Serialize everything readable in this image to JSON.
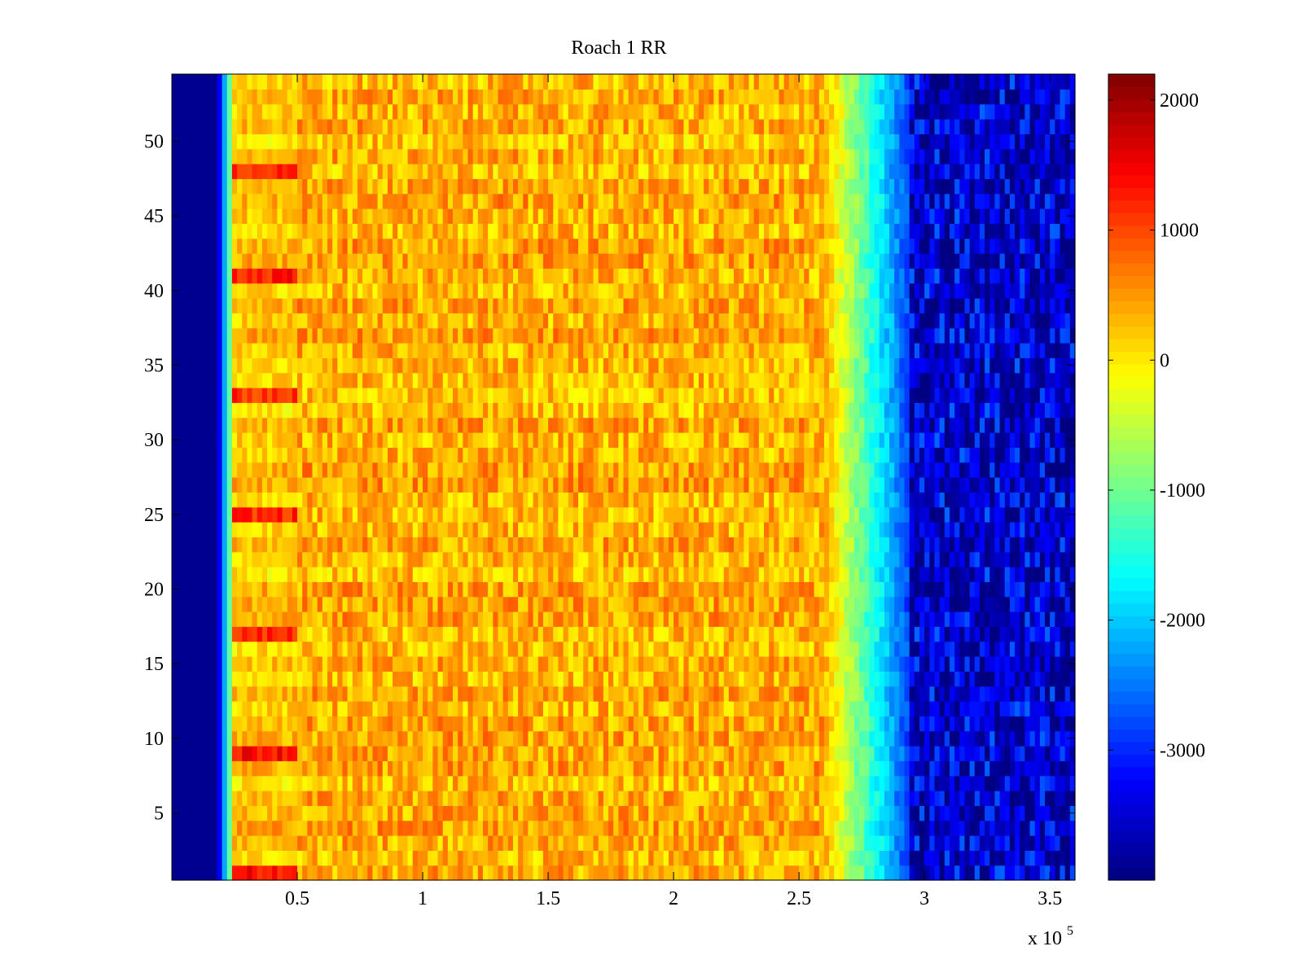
{
  "chart_data": {
    "type": "heatmap",
    "title": "Roach 1 RR",
    "xlabel": "",
    "ylabel": "",
    "x_multiplier_label": "x 10",
    "x_multiplier_exponent": "5",
    "xlim": [
      0,
      3.6
    ],
    "ylim": [
      0.5,
      54.5
    ],
    "x_ticks": [
      0.5,
      1,
      1.5,
      2,
      2.5,
      3,
      3.5
    ],
    "x_tick_labels": [
      "0.5",
      "1",
      "1.5",
      "2",
      "2.5",
      "3",
      "3.5"
    ],
    "y_ticks": [
      5,
      10,
      15,
      20,
      25,
      30,
      35,
      40,
      45,
      50
    ],
    "y_tick_labels": [
      "5",
      "10",
      "15",
      "20",
      "25",
      "30",
      "35",
      "40",
      "45",
      "50"
    ],
    "colorbar": {
      "colormap": "jet",
      "clim": [
        -4000,
        2200
      ],
      "ticks": [
        -3000,
        -2000,
        -1000,
        0,
        1000,
        2000
      ],
      "tick_labels": [
        "-3000",
        "-2000",
        "-1000",
        "0",
        "1000",
        "2000"
      ]
    },
    "rows": 54,
    "value_range_estimate": [
      -4000,
      2200
    ],
    "grid": false
  }
}
